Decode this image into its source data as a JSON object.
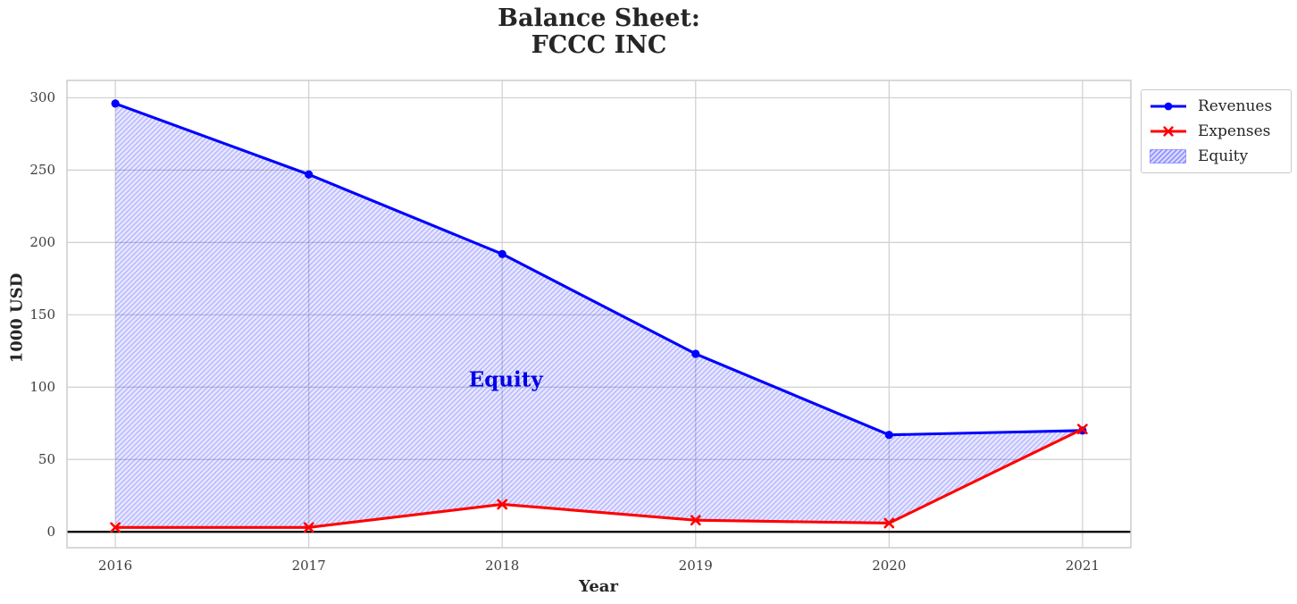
{
  "title": {
    "line1": "Balance Sheet:",
    "line2": "FCCC INC"
  },
  "chart_data": {
    "type": "line",
    "title": "Balance Sheet:\nFCCC INC",
    "title_lines": [
      "Balance Sheet:",
      "FCCC INC"
    ],
    "xlabel": "Year",
    "ylabel": "1000 USD",
    "categories": [
      2016,
      2017,
      2018,
      2019,
      2020,
      2021
    ],
    "series": [
      {
        "name": "Revenues",
        "color": "#0000ff",
        "marker": "circle",
        "values": [
          296,
          247,
          192,
          123,
          67,
          70
        ]
      },
      {
        "name": "Expenses",
        "color": "#ff0000",
        "marker": "x",
        "values": [
          3,
          3,
          19,
          8,
          6,
          71
        ]
      }
    ],
    "fill_between": {
      "label": "Equity",
      "upper_series": "Revenues",
      "lower_series": "Expenses",
      "fill_color": "#0000ff",
      "fill_opacity": 0.1,
      "hatch": "//",
      "hatch_color": "rgba(0,0,255,0.25)",
      "legend_hatch_color": "rgba(0,0,255,0.38)"
    },
    "annotation": {
      "text": "Equity",
      "x": 2018,
      "y": 105,
      "color": "#0000e6"
    },
    "baseline": {
      "y": 0,
      "color": "#000000"
    },
    "xlim": [
      2015.75,
      2021.25
    ],
    "ylim": [
      -11,
      312
    ],
    "yticks": [
      0,
      50,
      100,
      150,
      200,
      250,
      300
    ],
    "grid": true,
    "grid_color": "#cfcfcf",
    "frame_color": "#c9c9c9",
    "legend_position": "upper-right-outside"
  }
}
